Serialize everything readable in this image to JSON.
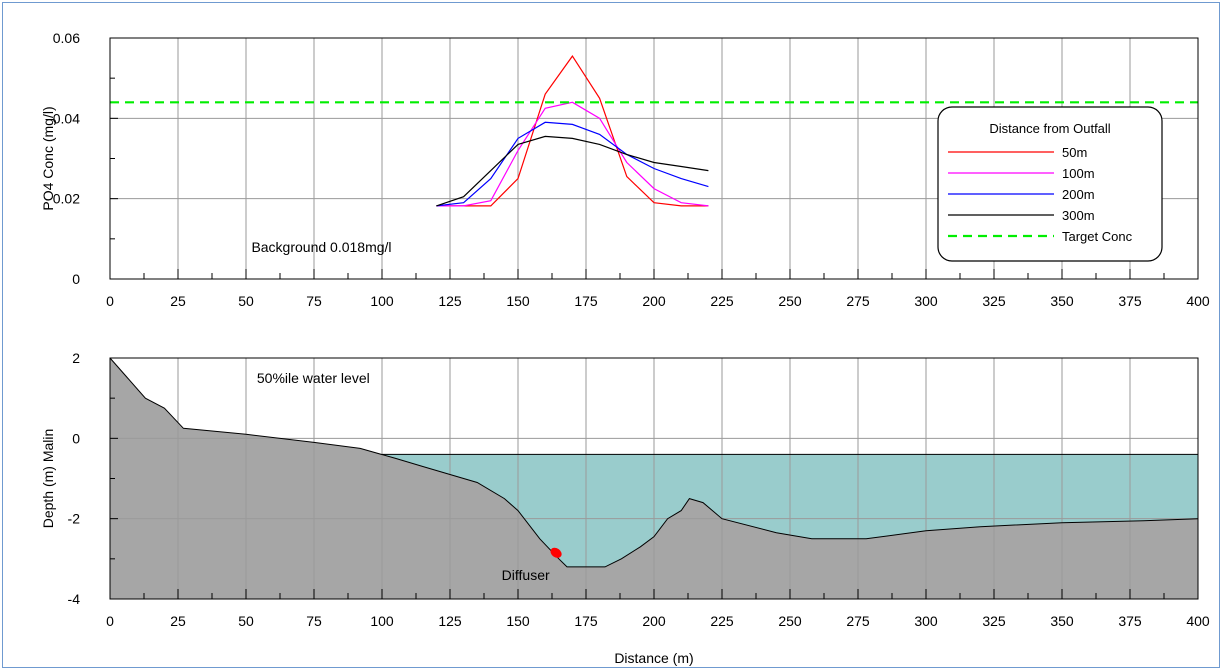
{
  "chart_data": [
    {
      "type": "line",
      "ylabel": "PO4 Conc (mg/l)",
      "xlim": [
        0,
        400
      ],
      "ylim": [
        0,
        0.06
      ],
      "xticks": [
        0,
        25,
        50,
        75,
        100,
        125,
        150,
        175,
        200,
        225,
        250,
        275,
        300,
        325,
        350,
        375,
        400
      ],
      "yticks": [
        0,
        0.02,
        0.04,
        0.06
      ],
      "ytick_labels": [
        "0",
        "0.02",
        "0.04",
        "0.06"
      ],
      "grid": true,
      "annotations": [
        {
          "text": "Background 0.018mg/l",
          "x": 52,
          "y": 0.008
        }
      ],
      "legend": {
        "title": "Distance from Outfall",
        "placement": "right"
      },
      "series": [
        {
          "name": "50m",
          "color": "#ff0000",
          "x": [
            120,
            130,
            140,
            150,
            160,
            170,
            180,
            190,
            200,
            210,
            220
          ],
          "y": [
            0.0182,
            0.0182,
            0.0182,
            0.025,
            0.046,
            0.0555,
            0.045,
            0.0255,
            0.019,
            0.0182,
            0.0182
          ]
        },
        {
          "name": "100m",
          "color": "#ff00ff",
          "x": [
            120,
            130,
            140,
            150,
            160,
            170,
            180,
            190,
            200,
            210,
            220
          ],
          "y": [
            0.0182,
            0.0182,
            0.0195,
            0.032,
            0.0425,
            0.044,
            0.04,
            0.029,
            0.0225,
            0.019,
            0.0182
          ]
        },
        {
          "name": "200m",
          "color": "#0000ff",
          "x": [
            120,
            130,
            140,
            150,
            160,
            170,
            180,
            190,
            200,
            210,
            220
          ],
          "y": [
            0.0182,
            0.019,
            0.025,
            0.035,
            0.039,
            0.0385,
            0.036,
            0.031,
            0.0275,
            0.025,
            0.023
          ]
        },
        {
          "name": "300m",
          "color": "#000000",
          "x": [
            120,
            130,
            140,
            150,
            160,
            170,
            180,
            190,
            200,
            210,
            220
          ],
          "y": [
            0.0182,
            0.0205,
            0.027,
            0.0335,
            0.0355,
            0.035,
            0.0335,
            0.031,
            0.029,
            0.028,
            0.027
          ]
        },
        {
          "name": "Target Conc",
          "color": "#00ee00",
          "dashed": true,
          "x": [
            0,
            400
          ],
          "y": [
            0.044,
            0.044
          ]
        }
      ]
    },
    {
      "type": "area",
      "xlabel": "Distance (m)",
      "ylabel": "Depth (m) Malin",
      "xlim": [
        0,
        400
      ],
      "ylim": [
        -4,
        2
      ],
      "xticks": [
        0,
        25,
        50,
        75,
        100,
        125,
        150,
        175,
        200,
        225,
        250,
        275,
        300,
        325,
        350,
        375,
        400
      ],
      "yticks": [
        -4,
        -2,
        0,
        2
      ],
      "grid": true,
      "water_level": -0.4,
      "bed_color": "#a6a6a6",
      "water_color": "#99cccc",
      "annotations": [
        {
          "text": "50%ile water level",
          "x": 54,
          "y": 1.5
        },
        {
          "text": "Diffuser",
          "x": 144,
          "y": -3.4,
          "color": "#ff0000"
        }
      ],
      "diffuser": {
        "x": 164,
        "y": -2.85,
        "color": "#ff0000"
      },
      "series": [
        {
          "name": "",
          "x": [
            0,
            13,
            20,
            27,
            50,
            75,
            92,
            105,
            115,
            125,
            135,
            145,
            150,
            158,
            165,
            168,
            182,
            188,
            195,
            200,
            205,
            210,
            213,
            218,
            225,
            245,
            258,
            278,
            300,
            320,
            350,
            380,
            400
          ],
          "y": [
            2,
            1.0,
            0.75,
            0.25,
            0.1,
            -0.1,
            -0.25,
            -0.5,
            -0.7,
            -0.9,
            -1.1,
            -1.5,
            -1.8,
            -2.5,
            -3.0,
            -3.2,
            -3.2,
            -3.0,
            -2.7,
            -2.45,
            -2.0,
            -1.8,
            -1.5,
            -1.6,
            -2.0,
            -2.35,
            -2.5,
            -2.5,
            -2.3,
            -2.2,
            -2.1,
            -2.05,
            -2.0
          ]
        }
      ]
    }
  ]
}
